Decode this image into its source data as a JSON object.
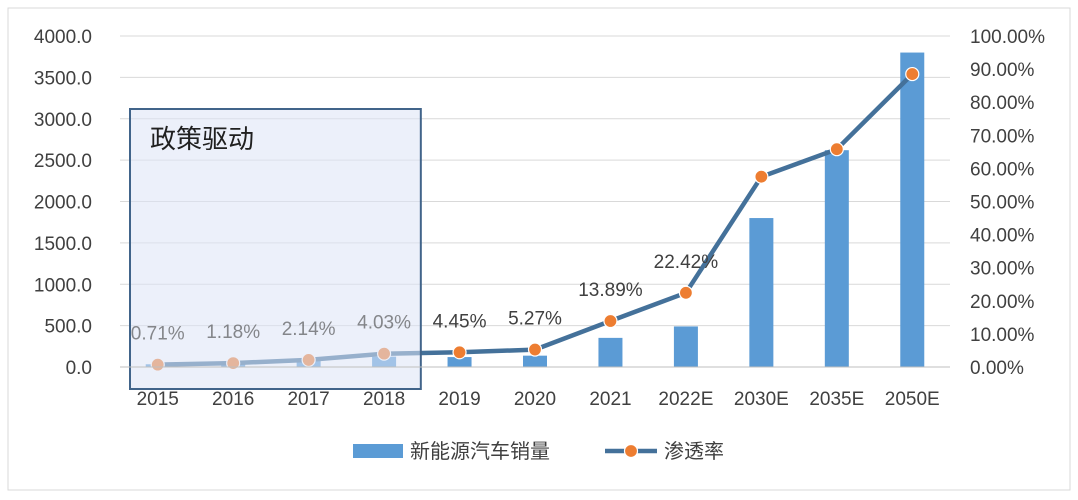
{
  "chart_data": {
    "type": "bar",
    "categories": [
      "2015",
      "2016",
      "2017",
      "2018",
      "2019",
      "2020",
      "2021",
      "2022E",
      "2030E",
      "2035E",
      "2050E"
    ],
    "series": [
      {
        "name": "新能源汽车销量",
        "type": "bar",
        "axis": "left",
        "color": "#5B9BD5",
        "values": [
          33,
          50,
          78,
          125,
          120,
          137,
          352,
          490,
          1800,
          2620,
          3800
        ]
      },
      {
        "name": "渗透率",
        "type": "line",
        "axis": "right",
        "line_color": "#44719A",
        "marker_color": "#ED7D31",
        "values": [
          0.71,
          1.18,
          2.14,
          4.03,
          4.45,
          5.27,
          13.89,
          22.42,
          57.5,
          65.8,
          88.5
        ],
        "data_labels": [
          "0.71%",
          "1.18%",
          "2.14%",
          "4.03%",
          "4.45%",
          "5.27%",
          "13.89%",
          "22.42%",
          "",
          "",
          ""
        ]
      }
    ],
    "ylim_left": [
      0,
      4000
    ],
    "left_ticks": [
      "0.0",
      "500.0",
      "1000.0",
      "1500.0",
      "2000.0",
      "2500.0",
      "3000.0",
      "3500.0",
      "4000.0"
    ],
    "ylim_right": [
      0,
      100
    ],
    "right_ticks": [
      "0.00%",
      "10.00%",
      "20.00%",
      "30.00%",
      "40.00%",
      "50.00%",
      "60.00%",
      "70.00%",
      "80.00%",
      "90.00%",
      "100.00%"
    ],
    "grid": true,
    "legend_position": "bottom",
    "annotation": {
      "text": "政策驱动",
      "spans_categories": [
        "2015",
        "2016",
        "2017",
        "2018"
      ],
      "fill_color": "#DCE3F5",
      "border_color": "#41648A"
    }
  }
}
